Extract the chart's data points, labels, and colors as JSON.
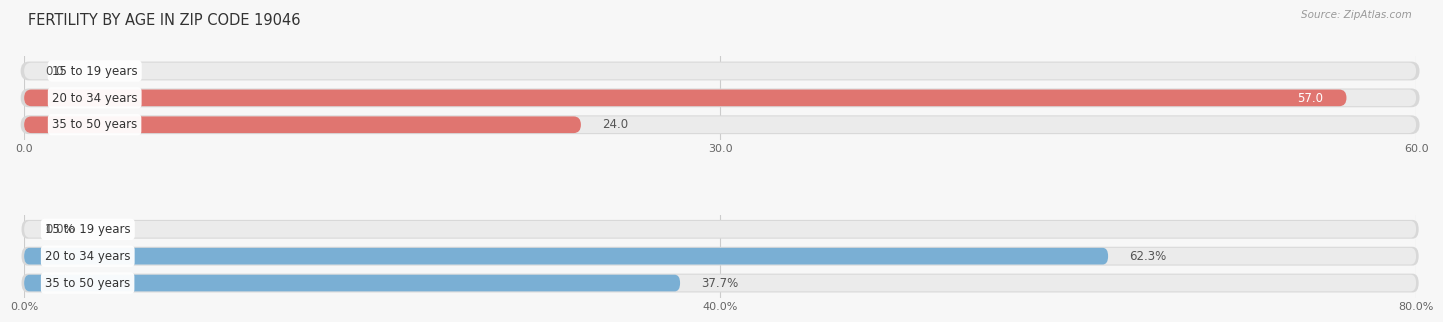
{
  "title": "FERTILITY BY AGE IN ZIP CODE 19046",
  "source": "Source: ZipAtlas.com",
  "top_chart": {
    "categories": [
      "15 to 19 years",
      "20 to 34 years",
      "35 to 50 years"
    ],
    "values": [
      0.0,
      57.0,
      24.0
    ],
    "bar_color": "#e07570",
    "bar_bg_color": "#ebebeb",
    "bar_border_color": "#d8d8d8",
    "xlim": [
      0,
      60.0
    ],
    "xticks": [
      0.0,
      30.0,
      60.0
    ],
    "label_inside_color": "#ffffff",
    "label_outside_color": "#555555",
    "value_threshold": 50
  },
  "bottom_chart": {
    "categories": [
      "15 to 19 years",
      "20 to 34 years",
      "35 to 50 years"
    ],
    "values": [
      0.0,
      62.3,
      37.7
    ],
    "bar_color": "#7aafd4",
    "bar_bg_color": "#ebebeb",
    "bar_border_color": "#d8d8d8",
    "xlim": [
      0,
      80.0
    ],
    "xticks": [
      0.0,
      40.0,
      80.0
    ],
    "label_inside_color": "#ffffff",
    "label_outside_color": "#555555",
    "value_threshold": 70
  },
  "background_color": "#f7f7f7",
  "bar_height": 0.62,
  "label_fontsize": 8.5,
  "tick_fontsize": 8,
  "title_fontsize": 10.5,
  "source_fontsize": 7.5,
  "category_fontsize": 8.5
}
